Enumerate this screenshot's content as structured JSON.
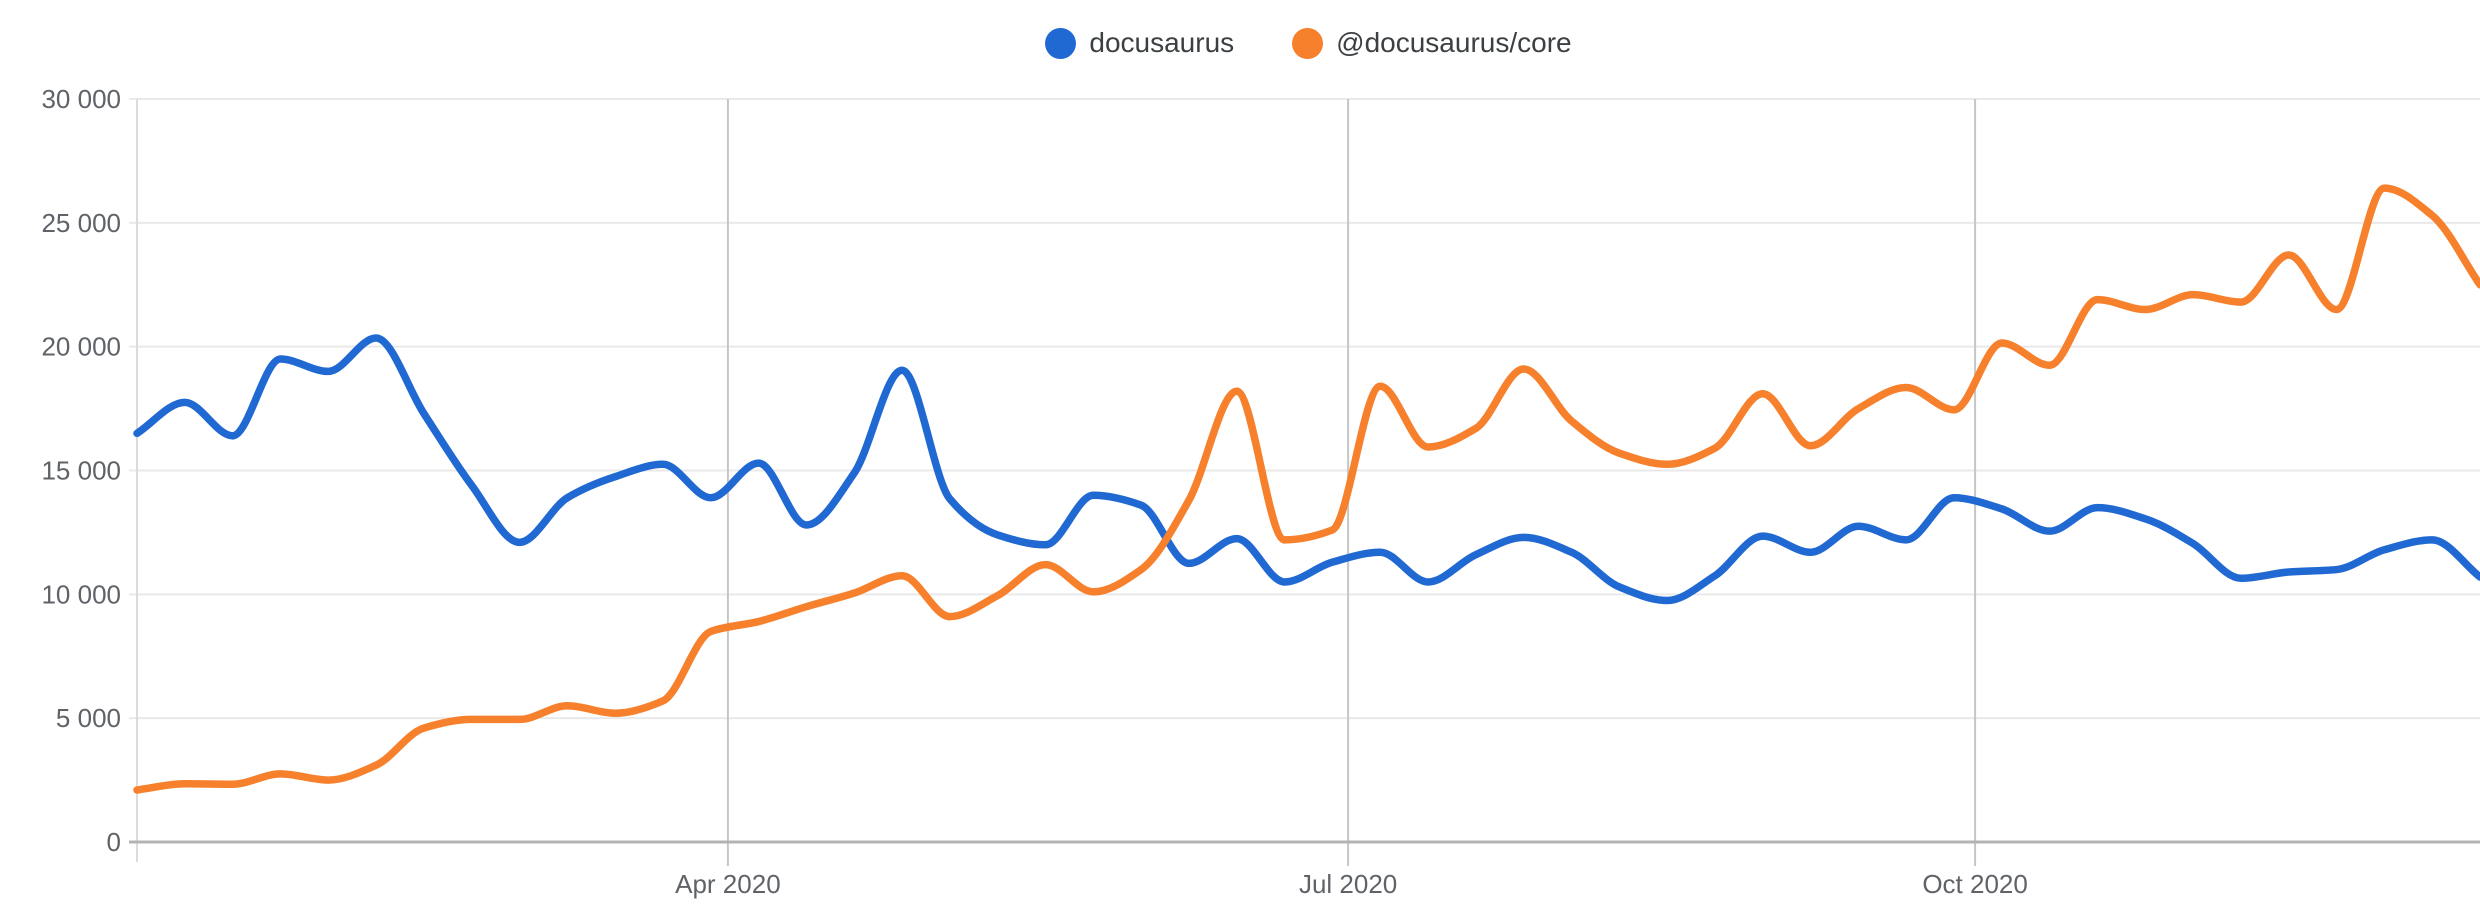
{
  "page": {
    "background": "#ffffff"
  },
  "chart_data": {
    "type": "line",
    "title": "",
    "legend_position": "top",
    "grid": true,
    "smoothing": "monotone",
    "x_axis": {
      "ticks": [
        {
          "label": "Apr 2020",
          "pos": 0.2522
        },
        {
          "label": "Jul 2020",
          "pos": 0.5169
        },
        {
          "label": "Oct 2020",
          "pos": 0.7845
        }
      ]
    },
    "y_axis": {
      "min": 0,
      "max": 30000,
      "ticks": [
        {
          "label": "0",
          "value": 0
        },
        {
          "label": "5 000",
          "value": 5000
        },
        {
          "label": "10 000",
          "value": 10000
        },
        {
          "label": "15 000",
          "value": 15000
        },
        {
          "label": "20 000",
          "value": 20000
        },
        {
          "label": "25 000",
          "value": 25000
        },
        {
          "label": "30 000",
          "value": 30000
        }
      ]
    },
    "series": [
      {
        "name": "docusaurus",
        "color": "#2169d2",
        "values": [
          16500,
          17750,
          16400,
          19500,
          19000,
          20350,
          17300,
          14400,
          12100,
          13900,
          14750,
          15250,
          13900,
          15300,
          12800,
          14900,
          19050,
          13850,
          12400,
          12000,
          14000,
          13600,
          11250,
          12250,
          10500,
          11300,
          11700,
          10500,
          11600,
          12300,
          11700,
          10300,
          9750,
          10750,
          12350,
          11700,
          12750,
          12200,
          13900,
          13450,
          12550,
          13500,
          13050,
          12050,
          10650,
          10900,
          11000,
          11800,
          12200,
          10700
        ]
      },
      {
        "name": "@docusaurus/core",
        "color": "#f6802c",
        "values": [
          2100,
          2350,
          2330,
          2750,
          2500,
          3100,
          4600,
          4950,
          4950,
          5500,
          5200,
          5700,
          8500,
          8900,
          9500,
          10050,
          10750,
          9100,
          9950,
          11200,
          10100,
          11000,
          13800,
          18200,
          12200,
          12600,
          18400,
          15950,
          16700,
          19100,
          17000,
          15700,
          15250,
          15900,
          18100,
          16000,
          17500,
          18350,
          17450,
          20150,
          19250,
          21900,
          21500,
          22100,
          21800,
          23700,
          21500,
          26400,
          25300,
          22500
        ]
      }
    ]
  },
  "colors": {
    "h_grid": "#e9e9e9",
    "v_grid": "#c6c6c6",
    "y_axis_line": "#dcdcdc",
    "x_axis_line": "#b3b3b3",
    "tick_text": "#5f6368"
  }
}
